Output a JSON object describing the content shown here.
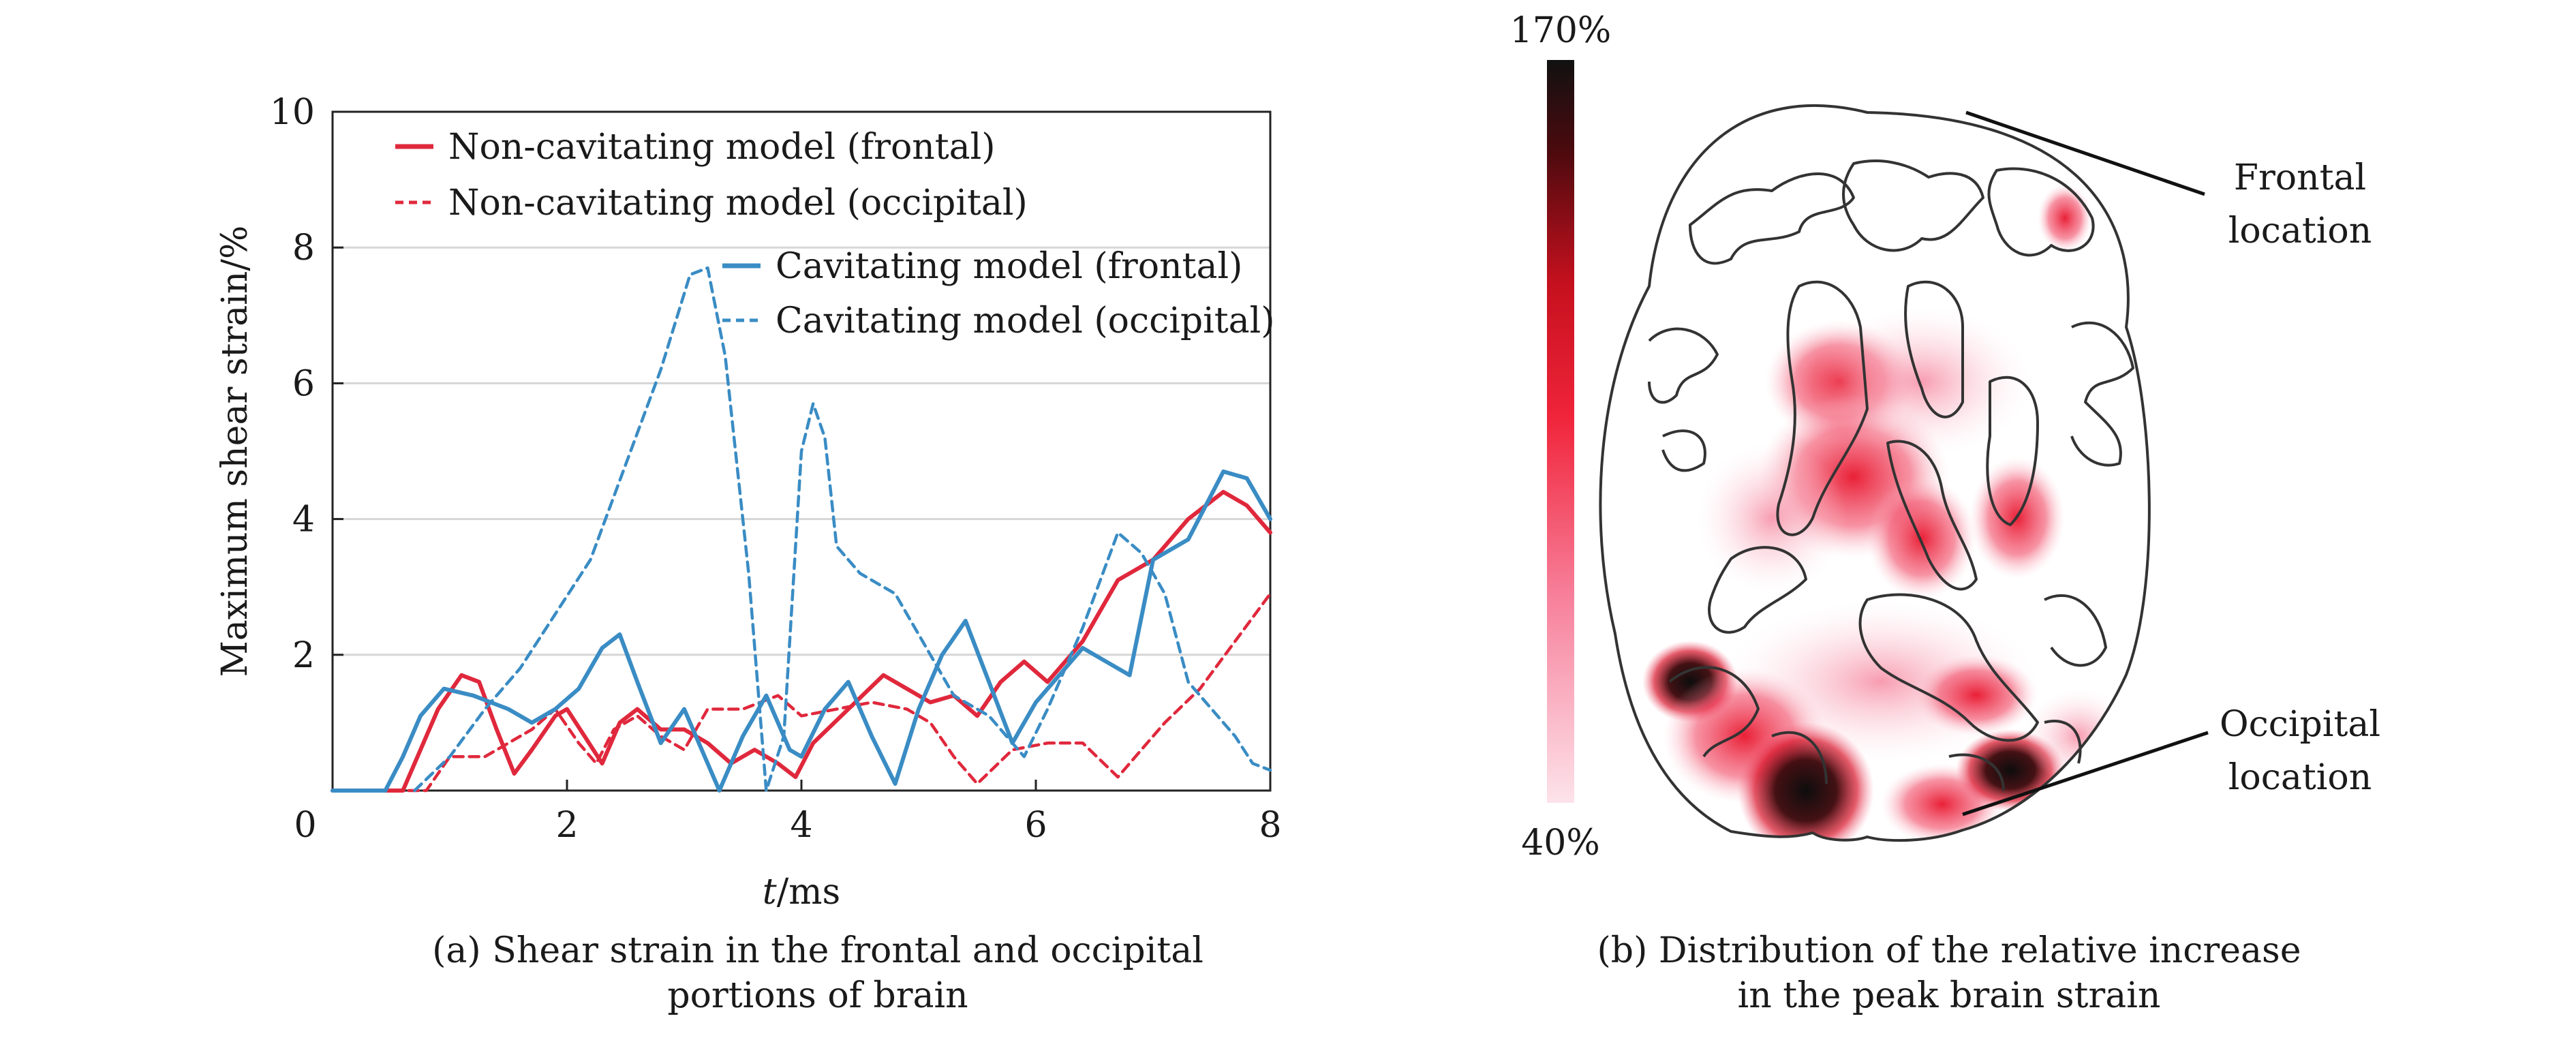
{
  "panel_a": {
    "caption_line1": "(a) Shear strain in the frontal and occipital",
    "caption_line2": "portions of brain"
  },
  "panel_b": {
    "caption_line1": "(b) Distribution of the relative increase",
    "caption_line2": "in the peak brain strain",
    "colorbar_max_label": "170%",
    "colorbar_min_label": "40%",
    "annotation_frontal_line1": "Frontal",
    "annotation_frontal_line2": "location",
    "annotation_occipital_line1": "Occipital",
    "annotation_occipital_line2": "location",
    "colors": {
      "scale_high": "#111111",
      "scale_mid": "#e8152c",
      "scale_low": "#fde3ea",
      "outline": "#333333"
    }
  },
  "chart_data": {
    "type": "line",
    "title": "",
    "xlabel_italic": "t",
    "xlabel_rest": "/ms",
    "ylabel": "Maximum shear strain/%",
    "xlim": [
      0,
      8
    ],
    "ylim": [
      0,
      10
    ],
    "x_ticks": [
      0,
      2,
      4,
      6,
      8
    ],
    "y_ticks": [
      2,
      4,
      6,
      8,
      10
    ],
    "x_tick_labels": [
      "0",
      "2",
      "4",
      "6",
      "8"
    ],
    "y_tick_labels": [
      "2",
      "4",
      "6",
      "8",
      "10"
    ],
    "grid": "horizontal",
    "legend_placement": "top",
    "series": [
      {
        "name": "Non-cavitating model (frontal)",
        "color": "#e0283c",
        "style": "solid",
        "points": [
          [
            0,
            0
          ],
          [
            0.6,
            0
          ],
          [
            0.75,
            0.6
          ],
          [
            0.9,
            1.2
          ],
          [
            1.1,
            1.7
          ],
          [
            1.25,
            1.6
          ],
          [
            1.4,
            0.9
          ],
          [
            1.55,
            0.25
          ],
          [
            1.7,
            0.6
          ],
          [
            1.9,
            1.1
          ],
          [
            2.0,
            1.2
          ],
          [
            2.15,
            0.8
          ],
          [
            2.3,
            0.4
          ],
          [
            2.45,
            1.0
          ],
          [
            2.6,
            1.2
          ],
          [
            2.8,
            0.9
          ],
          [
            3.0,
            0.9
          ],
          [
            3.2,
            0.7
          ],
          [
            3.4,
            0.4
          ],
          [
            3.6,
            0.6
          ],
          [
            3.8,
            0.4
          ],
          [
            3.95,
            0.2
          ],
          [
            4.1,
            0.7
          ],
          [
            4.4,
            1.2
          ],
          [
            4.7,
            1.7
          ],
          [
            4.9,
            1.5
          ],
          [
            5.1,
            1.3
          ],
          [
            5.3,
            1.4
          ],
          [
            5.5,
            1.1
          ],
          [
            5.7,
            1.6
          ],
          [
            5.9,
            1.9
          ],
          [
            6.1,
            1.6
          ],
          [
            6.4,
            2.2
          ],
          [
            6.7,
            3.1
          ],
          [
            7.0,
            3.4
          ],
          [
            7.3,
            4.0
          ],
          [
            7.6,
            4.4
          ],
          [
            7.8,
            4.2
          ],
          [
            8.0,
            3.8
          ]
        ]
      },
      {
        "name": "Non-cavitating model (occipital)",
        "color": "#e0283c",
        "style": "dashed",
        "points": [
          [
            0.65,
            0
          ],
          [
            0.8,
            0
          ],
          [
            1.0,
            0.5
          ],
          [
            1.3,
            0.5
          ],
          [
            1.5,
            0.7
          ],
          [
            1.7,
            0.9
          ],
          [
            1.9,
            1.2
          ],
          [
            2.1,
            0.7
          ],
          [
            2.25,
            0.4
          ],
          [
            2.4,
            0.9
          ],
          [
            2.6,
            1.1
          ],
          [
            2.8,
            0.8
          ],
          [
            3.0,
            0.6
          ],
          [
            3.2,
            1.2
          ],
          [
            3.5,
            1.2
          ],
          [
            3.8,
            1.4
          ],
          [
            4.0,
            1.1
          ],
          [
            4.3,
            1.2
          ],
          [
            4.6,
            1.3
          ],
          [
            4.9,
            1.2
          ],
          [
            5.1,
            1.0
          ],
          [
            5.3,
            0.5
          ],
          [
            5.5,
            0.1
          ],
          [
            5.8,
            0.6
          ],
          [
            6.1,
            0.7
          ],
          [
            6.4,
            0.7
          ],
          [
            6.7,
            0.2
          ],
          [
            6.9,
            0.6
          ],
          [
            7.1,
            1.0
          ],
          [
            7.4,
            1.5
          ],
          [
            7.7,
            2.2
          ],
          [
            8.0,
            2.9
          ]
        ]
      },
      {
        "name": "Cavitating model (frontal)",
        "color": "#3a8cc4",
        "style": "solid",
        "points": [
          [
            0,
            0
          ],
          [
            0.45,
            0
          ],
          [
            0.6,
            0.5
          ],
          [
            0.75,
            1.1
          ],
          [
            0.95,
            1.5
          ],
          [
            1.2,
            1.4
          ],
          [
            1.5,
            1.2
          ],
          [
            1.7,
            1.0
          ],
          [
            1.9,
            1.2
          ],
          [
            2.1,
            1.5
          ],
          [
            2.3,
            2.1
          ],
          [
            2.45,
            2.3
          ],
          [
            2.6,
            1.6
          ],
          [
            2.8,
            0.7
          ],
          [
            3.0,
            1.2
          ],
          [
            3.1,
            0.8
          ],
          [
            3.3,
            0.0
          ],
          [
            3.5,
            0.8
          ],
          [
            3.7,
            1.4
          ],
          [
            3.9,
            0.6
          ],
          [
            4.0,
            0.5
          ],
          [
            4.2,
            1.2
          ],
          [
            4.4,
            1.6
          ],
          [
            4.6,
            0.8
          ],
          [
            4.8,
            0.1
          ],
          [
            5.0,
            1.2
          ],
          [
            5.2,
            2.0
          ],
          [
            5.4,
            2.5
          ],
          [
            5.6,
            1.6
          ],
          [
            5.8,
            0.7
          ],
          [
            6.0,
            1.3
          ],
          [
            6.2,
            1.7
          ],
          [
            6.4,
            2.1
          ],
          [
            6.6,
            1.9
          ],
          [
            6.8,
            1.7
          ],
          [
            7.0,
            3.4
          ],
          [
            7.3,
            3.7
          ],
          [
            7.6,
            4.7
          ],
          [
            7.8,
            4.6
          ],
          [
            8.0,
            4.0
          ]
        ]
      },
      {
        "name": "Cavitating model (occipital)",
        "color": "#3a8cc4",
        "style": "dashed",
        "points": [
          [
            0.7,
            0
          ],
          [
            1.0,
            0.5
          ],
          [
            1.3,
            1.2
          ],
          [
            1.6,
            1.8
          ],
          [
            1.9,
            2.6
          ],
          [
            2.2,
            3.4
          ],
          [
            2.5,
            4.8
          ],
          [
            2.8,
            6.2
          ],
          [
            3.05,
            7.6
          ],
          [
            3.2,
            7.7
          ],
          [
            3.35,
            6.4
          ],
          [
            3.55,
            3.2
          ],
          [
            3.7,
            0.0
          ],
          [
            3.85,
            0.8
          ],
          [
            4.0,
            5.0
          ],
          [
            4.1,
            5.7
          ],
          [
            4.2,
            5.2
          ],
          [
            4.3,
            3.6
          ],
          [
            4.5,
            3.2
          ],
          [
            4.8,
            2.9
          ],
          [
            5.0,
            2.3
          ],
          [
            5.3,
            1.4
          ],
          [
            5.6,
            1.1
          ],
          [
            5.9,
            0.5
          ],
          [
            6.1,
            1.2
          ],
          [
            6.4,
            2.4
          ],
          [
            6.7,
            3.8
          ],
          [
            6.9,
            3.5
          ],
          [
            7.1,
            2.9
          ],
          [
            7.3,
            1.6
          ],
          [
            7.5,
            1.2
          ],
          [
            7.7,
            0.8
          ],
          [
            7.85,
            0.4
          ],
          [
            8.0,
            0.3
          ]
        ]
      }
    ]
  }
}
